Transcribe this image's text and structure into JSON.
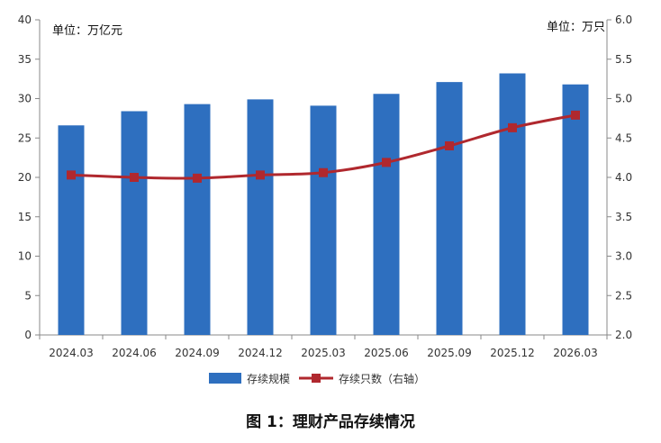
{
  "chart_data": {
    "type": "bar",
    "categories": [
      "2024.03",
      "2024.06",
      "2024.09",
      "2024.12",
      "2025.03",
      "2025.06",
      "2025.09",
      "2025.12",
      "2026.03"
    ],
    "series": [
      {
        "name": "存续规模",
        "type": "bar",
        "axis": "left",
        "color": "#2e6fbf",
        "values": [
          26.6,
          28.4,
          29.3,
          29.9,
          29.1,
          30.6,
          32.1,
          33.2,
          31.8
        ]
      },
      {
        "name": "存续只数（右轴）",
        "type": "line",
        "axis": "right",
        "color": "#b0282e",
        "values": [
          4.03,
          4.0,
          3.99,
          4.03,
          4.06,
          4.19,
          4.4,
          4.63,
          4.79
        ]
      }
    ],
    "left_axis": {
      "unit_label": "单位：万亿元",
      "ylim": [
        0,
        40
      ],
      "ticks": [
        "0",
        "5",
        "10",
        "15",
        "20",
        "25",
        "30",
        "35",
        "40"
      ]
    },
    "right_axis": {
      "unit_label": "单位：万只",
      "ylim": [
        2.0,
        6.0
      ],
      "ticks": [
        "2.0",
        "2.5",
        "3.0",
        "3.5",
        "4.0",
        "4.5",
        "5.0",
        "5.5",
        "6.0"
      ]
    },
    "legend_position": "bottom",
    "grid": false,
    "caption": "图 1：理财产品存续情况"
  }
}
